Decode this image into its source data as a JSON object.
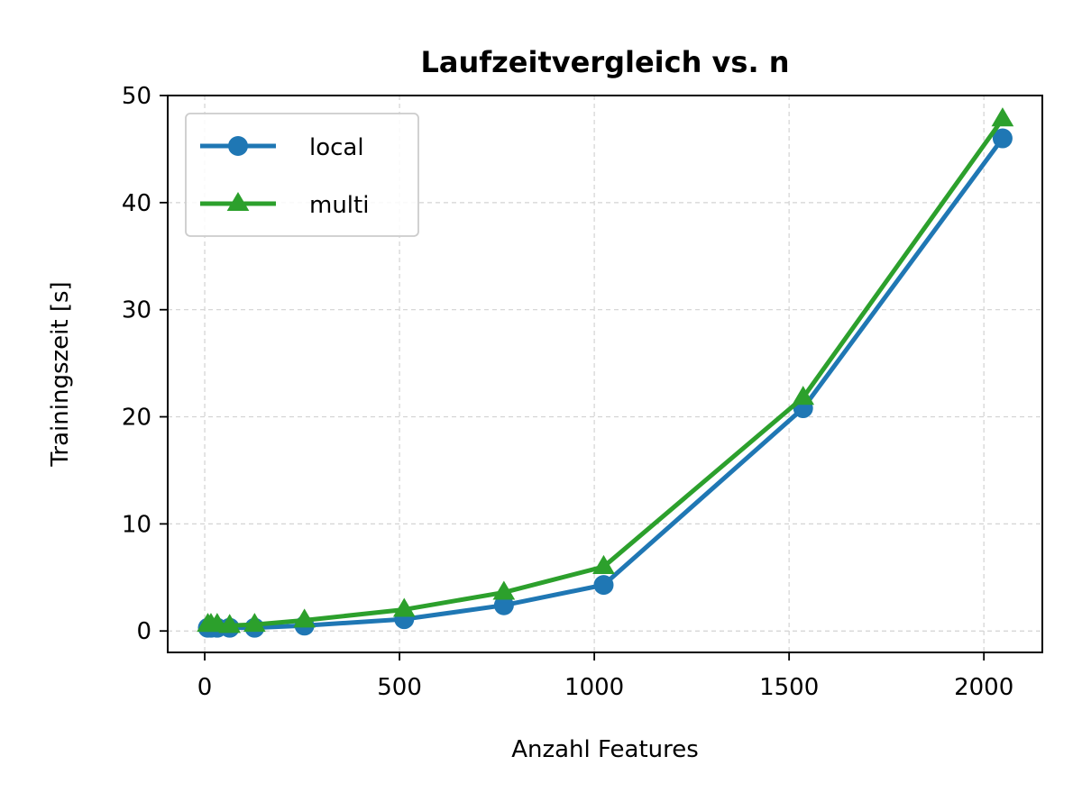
{
  "chart_data": {
    "type": "line",
    "title": "Laufzeitvergleich vs. n",
    "xlabel": "Anzahl Features",
    "ylabel": "Trainingszeit [s]",
    "xlim": [
      -95,
      2150
    ],
    "ylim": [
      -2,
      50
    ],
    "xticks": [
      0,
      500,
      1000,
      1500,
      2000
    ],
    "yticks": [
      0,
      10,
      20,
      30,
      40,
      50
    ],
    "grid": true,
    "legend_position": "top-left",
    "x": [
      8,
      16,
      32,
      64,
      128,
      256,
      512,
      768,
      1024,
      1536,
      2048
    ],
    "series": [
      {
        "name": "local",
        "color": "#1f77b4",
        "marker": "circle",
        "values": [
          0.3,
          0.3,
          0.3,
          0.3,
          0.3,
          0.5,
          1.1,
          2.4,
          4.3,
          20.8,
          46.0
        ]
      },
      {
        "name": "multi",
        "color": "#2ca02c",
        "marker": "triangle",
        "values": [
          0.6,
          0.6,
          0.6,
          0.5,
          0.6,
          1.0,
          2.0,
          3.6,
          6.0,
          21.8,
          47.8
        ]
      }
    ]
  }
}
